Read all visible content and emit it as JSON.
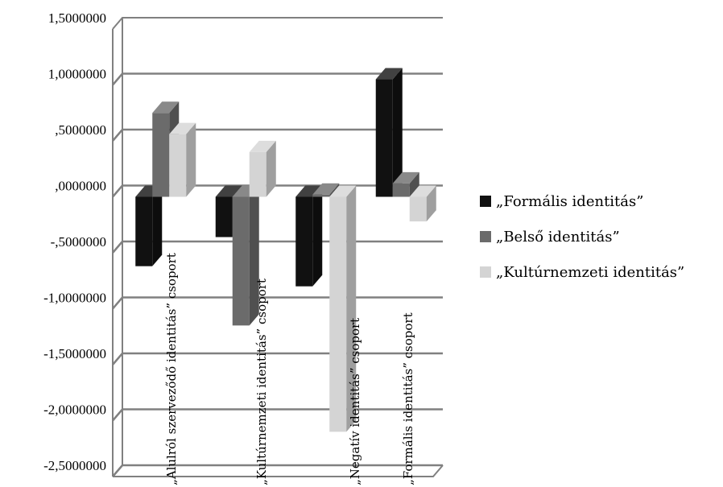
{
  "chart_data": {
    "type": "bar",
    "categories": [
      "„Alulról szerveződő identitás” csoport",
      "„Kultúrnemzeti identitás” csoport",
      "„Negatív identitás” csoport",
      "„Formális identitás” csoport"
    ],
    "series": [
      {
        "name": "„Formális identitás”",
        "color": "#111111",
        "values": [
          -0.62,
          -0.36,
          -0.8,
          1.05
        ]
      },
      {
        "name": "„Belső identitás”",
        "color": "#6b6b6b",
        "values": [
          0.75,
          -1.15,
          0.02,
          0.12
        ]
      },
      {
        "name": "„Kultúrnemzeti identitás”",
        "color": "#d4d4d4",
        "values": [
          0.56,
          0.4,
          -2.1,
          -0.22
        ]
      }
    ],
    "ylim": [
      -2.5,
      1.5
    ],
    "yticks": [
      1.5,
      1.0,
      0.5,
      0.0,
      -0.5,
      -1.0,
      -1.5,
      -2.0,
      -2.5
    ],
    "ytick_labels": [
      "1,5000000",
      "1,0000000",
      ",5000000",
      ",0000000",
      "-,5000000",
      "-1,0000000",
      "-1,5000000",
      "-2,0000000",
      "-2,5000000"
    ],
    "grid": true,
    "legend_position": "right",
    "three_d": true
  }
}
